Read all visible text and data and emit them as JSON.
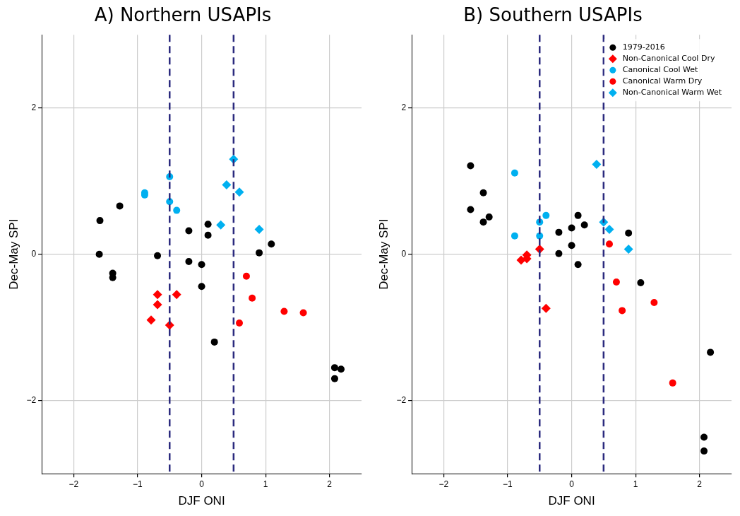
{
  "chart_data": [
    {
      "type": "scatter",
      "title": "A) Northern USAPIs",
      "xlabel": "DJF ONI",
      "ylabel": "Dec-May SPI",
      "xlim": [
        -2.5,
        2.5
      ],
      "xticks": [
        -2,
        -1,
        0,
        1,
        2
      ],
      "ylim": [
        -3,
        3
      ],
      "yticks": [
        -2,
        0,
        2
      ],
      "grid": true,
      "legend": false,
      "ref_lines": [
        {
          "axis": "x",
          "value": -0.5,
          "color": "#2b2a7e",
          "line_style": "dashed"
        },
        {
          "axis": "x",
          "value": 0.5,
          "color": "#2b2a7e",
          "line_style": "dashed"
        }
      ],
      "series": [
        {
          "color": "#000000",
          "marker": "circle",
          "x": [
            -1.59,
            -1.6,
            -1.28,
            -1.39,
            -1.39,
            -0.69,
            -0.2,
            -0.2,
            0,
            0,
            0.1,
            0.1,
            1.09,
            0.9,
            0.2,
            2.08,
            2.18,
            2.08
          ],
          "values": [
            0.46,
            0.0,
            0.66,
            -0.26,
            -0.32,
            -0.02,
            0.32,
            -0.1,
            -0.14,
            -0.44,
            0.41,
            0.26,
            0.14,
            0.02,
            -1.2,
            -1.55,
            -1.57,
            -1.7
          ]
        },
        {
          "color": "#ff0000",
          "marker": "diamond",
          "x": [
            -0.69,
            -0.69,
            -0.39,
            -0.79,
            -0.5
          ],
          "values": [
            -0.55,
            -0.69,
            -0.55,
            -0.9,
            -0.97
          ]
        },
        {
          "color": "#00b0f0",
          "marker": "circle",
          "x": [
            -0.89,
            -0.89,
            -0.5,
            -0.5,
            -0.39
          ],
          "values": [
            0.84,
            0.81,
            1.06,
            0.72,
            0.6
          ]
        },
        {
          "color": "#ff0000",
          "marker": "circle",
          "x": [
            0.7,
            0.79,
            0.59,
            1.29,
            1.59
          ],
          "values": [
            -0.3,
            -0.6,
            -0.94,
            -0.78,
            -0.8
          ]
        },
        {
          "color": "#00b0f0",
          "marker": "diamond",
          "x": [
            0.5,
            0.39,
            0.59,
            0.3,
            0.9
          ],
          "values": [
            1.3,
            0.95,
            0.85,
            0.4,
            0.34
          ]
        }
      ]
    },
    {
      "type": "scatter",
      "title": "B) Southern USAPIs",
      "xlabel": "DJF ONI",
      "ylabel": "Dec-May SPI",
      "xlim": [
        -2.5,
        2.5
      ],
      "xticks": [
        -2,
        -1,
        0,
        1,
        2
      ],
      "ylim": [
        -3,
        3
      ],
      "yticks": [
        -2,
        0,
        2
      ],
      "grid": true,
      "legend": "top right",
      "ref_lines": [
        {
          "axis": "x",
          "value": -0.5,
          "color": "#2b2a7e",
          "line_style": "dashed"
        },
        {
          "axis": "x",
          "value": 0.5,
          "color": "#2b2a7e",
          "line_style": "dashed"
        }
      ],
      "series": [
        {
          "name": "1979-2016",
          "color": "#000000",
          "marker": "circle",
          "x": [
            -1.58,
            -1.38,
            -1.58,
            -1.29,
            -1.38,
            -0.2,
            -0.2,
            0,
            0,
            0.1,
            0.2,
            0.1,
            0.89,
            1.08,
            2.17,
            2.07,
            2.07
          ],
          "values": [
            1.21,
            0.84,
            0.61,
            0.51,
            0.44,
            0.3,
            0.01,
            0.36,
            0.12,
            0.53,
            0.4,
            -0.14,
            0.29,
            -0.39,
            -1.34,
            -2.5,
            -2.69
          ]
        },
        {
          "name": "Non-Canonical Cool Dry",
          "color": "#ff0000",
          "marker": "diamond",
          "x": [
            -0.5,
            -0.7,
            -0.7,
            -0.79,
            -0.4
          ],
          "values": [
            0.07,
            -0.01,
            -0.06,
            -0.08,
            -0.74
          ]
        },
        {
          "name": "Canonical Cool Wet",
          "color": "#00b0f0",
          "marker": "circle",
          "x": [
            -0.89,
            -0.89,
            -0.4,
            -0.5,
            -0.5
          ],
          "values": [
            1.11,
            0.25,
            0.53,
            0.44,
            0.25
          ]
        },
        {
          "name": "Canonical Warm Dry",
          "color": "#ff0000",
          "marker": "circle",
          "x": [
            0.59,
            0.7,
            0.79,
            1.29,
            1.58
          ],
          "values": [
            0.14,
            -0.38,
            -0.77,
            -0.66,
            -1.76
          ]
        },
        {
          "name": "Non-Canonical Warm Wet",
          "color": "#00b0f0",
          "marker": "diamond",
          "x": [
            0.39,
            0.5,
            0.59,
            0.89
          ],
          "values": [
            1.23,
            0.44,
            0.34,
            0.07
          ]
        }
      ]
    }
  ]
}
